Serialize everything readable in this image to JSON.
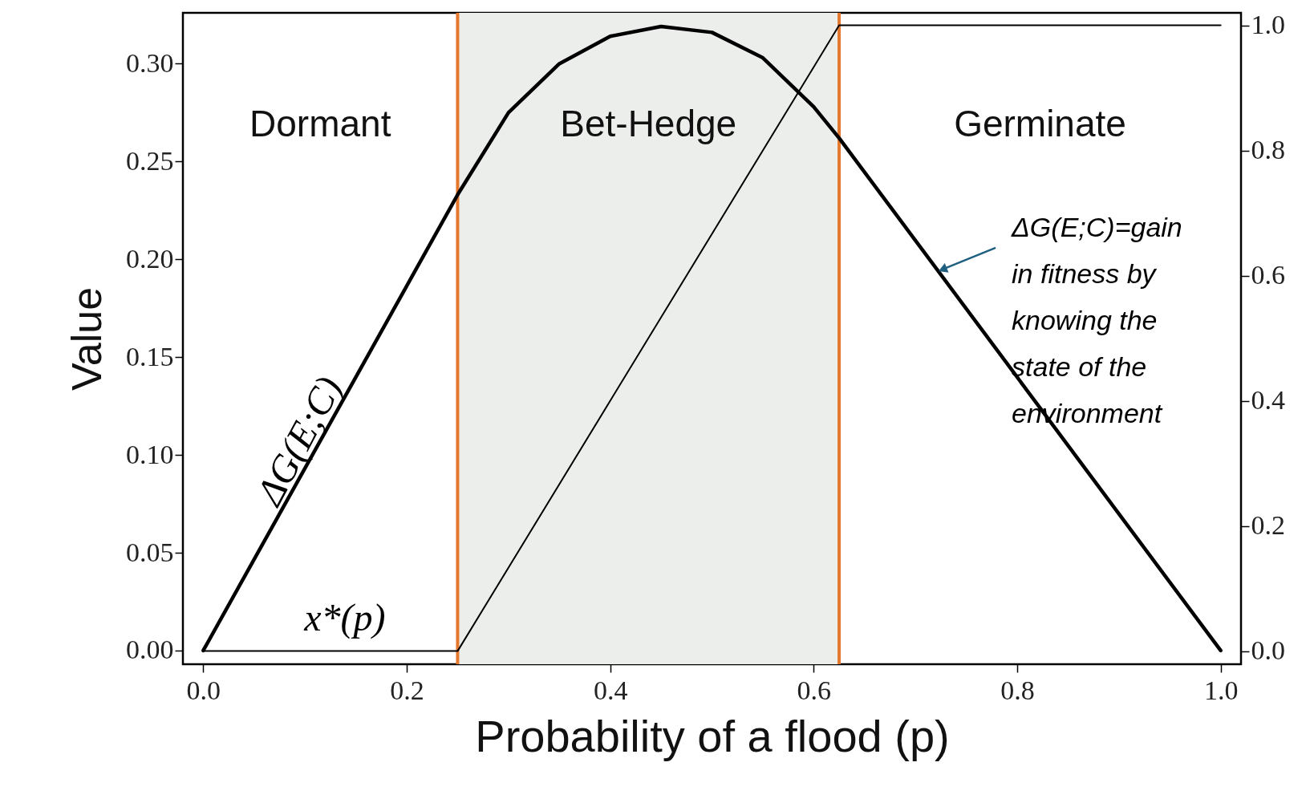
{
  "chart_data": {
    "type": "line",
    "xlabel": "Probability of a flood (p)",
    "ylabel": "Value",
    "grid": false,
    "xlim": [
      -0.02,
      1.02
    ],
    "xticks": [
      {
        "value": 0,
        "label": "0.0"
      },
      {
        "value": 0.2,
        "label": "0.2"
      },
      {
        "value": 0.4,
        "label": "0.4"
      },
      {
        "value": 0.6,
        "label": "0.6"
      },
      {
        "value": 0.8,
        "label": "0.8"
      },
      {
        "value": 1,
        "label": "1.0"
      }
    ],
    "ylim": [
      -0.007,
      0.326
    ],
    "yticks": [
      {
        "value": 0,
        "label": "0.00"
      },
      {
        "value": 0.05,
        "label": "0.05"
      },
      {
        "value": 0.1,
        "label": "0.10"
      },
      {
        "value": 0.15,
        "label": "0.15"
      },
      {
        "value": 0.2,
        "label": "0.20"
      },
      {
        "value": 0.25,
        "label": "0.25"
      },
      {
        "value": 0.3,
        "label": "0.30"
      }
    ],
    "y2lim": [
      -0.021,
      1.02
    ],
    "y2ticks": [
      {
        "value": 0,
        "label": "0.0"
      },
      {
        "value": 0.2,
        "label": "0.2"
      },
      {
        "value": 0.4,
        "label": "0.4"
      },
      {
        "value": 0.6,
        "label": "0.6"
      },
      {
        "value": 0.8,
        "label": "0.8"
      },
      {
        "value": 1,
        "label": "1.0"
      }
    ],
    "series": [
      {
        "name": "ΔG(E;C)",
        "color": "#000000",
        "x": [
          0,
          0.25,
          0.3,
          0.35,
          0.4,
          0.45,
          0.5,
          0.55,
          0.6,
          0.625,
          1
        ],
        "values": [
          0,
          0.233,
          0.275,
          0.3,
          0.314,
          0.319,
          0.316,
          0.303,
          0.278,
          0.262,
          0
        ]
      },
      {
        "name": "x*(p)",
        "color": "#000000",
        "axis": "y2",
        "x": [
          0,
          0.25,
          0.625,
          1
        ],
        "values": [
          0,
          0,
          1,
          1
        ]
      }
    ],
    "bands": [
      {
        "axis": "x",
        "from": 0.25,
        "to": 0.625,
        "color": "#eceeec"
      }
    ],
    "ref_lines": [
      {
        "axis": "x",
        "value": 0.25,
        "color": "#e3782e"
      },
      {
        "axis": "x",
        "value": 0.625,
        "color": "#e3782e"
      }
    ],
    "annotations": [
      "Dormant",
      "Bet-Hedge",
      "Germinate",
      {
        "text": "ΔG(E;C)=gain in fitness by knowing the state of the environment",
        "x": 0.722,
        "y": 0.194
      }
    ]
  }
}
